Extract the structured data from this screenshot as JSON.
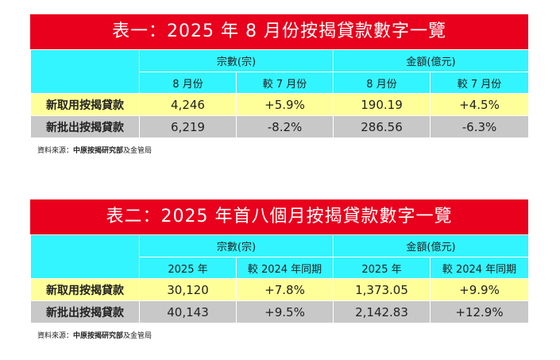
{
  "tables": [
    {
      "title": "表一：2025 年 8 月份按揭貸款數字一覽",
      "group_headers": [
        "宗數(宗)",
        "金額(億元)"
      ],
      "sub_headers": [
        "8 月份",
        "較 7 月份",
        "8 月份",
        "較 7 月份"
      ],
      "rows": [
        {
          "label": "新取用按揭貸款",
          "values": [
            "4,246",
            "+5.9%",
            "190.19",
            "+4.5%"
          ]
        },
        {
          "label": "新批出按揭貸款",
          "values": [
            "6,219",
            "-8.2%",
            "286.56",
            "-6.3%"
          ]
        }
      ],
      "source_prefix": "資料來源：",
      "source_bold": "中原按揭研究部",
      "source_suffix": "及金管局"
    },
    {
      "title": "表二：2025 年首八個月按揭貸款數字一覽",
      "group_headers": [
        "宗數(宗)",
        "金額(億元)"
      ],
      "sub_headers": [
        "2025 年",
        "較 2024 年同期",
        "2025 年",
        "較 2024 年同期"
      ],
      "rows": [
        {
          "label": "新取用按揭貸款",
          "values": [
            "30,120",
            "+7.8%",
            "1,373.05",
            "+9.9%"
          ]
        },
        {
          "label": "新批出按揭貸款",
          "values": [
            "40,143",
            "+9.5%",
            "2,142.83",
            "+12.9%"
          ]
        }
      ],
      "source_prefix": "資料來源：",
      "source_bold": "中原按揭研究部",
      "source_suffix": "及金管局"
    }
  ],
  "colors": {
    "title_bg": "#e8001c",
    "header_bg": "#33f5ff",
    "row1_bg": "#ffff99",
    "row2_bg": "#c8c8c8"
  }
}
